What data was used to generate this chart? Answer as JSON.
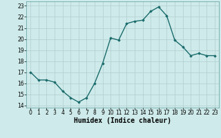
{
  "x": [
    0,
    1,
    2,
    3,
    4,
    5,
    6,
    7,
    8,
    9,
    10,
    11,
    12,
    13,
    14,
    15,
    16,
    17,
    18,
    19,
    20,
    21,
    22,
    23
  ],
  "y": [
    17.0,
    16.3,
    16.3,
    16.1,
    15.3,
    14.7,
    14.3,
    14.7,
    16.0,
    17.8,
    20.1,
    19.9,
    21.4,
    21.6,
    21.7,
    22.5,
    22.9,
    22.1,
    19.9,
    19.3,
    18.5,
    18.7,
    18.5,
    18.5
  ],
  "line_color": "#1a6b6b",
  "marker": "D",
  "marker_size": 1.8,
  "bg_color": "#ceeaea",
  "grid_color": "#b0cdcd",
  "grid_minor_color": "#c8e0e0",
  "xlabel": "Humidex (Indice chaleur)",
  "ylim": [
    13.8,
    23.4
  ],
  "xlim": [
    -0.5,
    23.5
  ],
  "yticks": [
    14,
    15,
    16,
    17,
    18,
    19,
    20,
    21,
    22,
    23
  ],
  "xticks": [
    0,
    1,
    2,
    3,
    4,
    5,
    6,
    7,
    8,
    9,
    10,
    11,
    12,
    13,
    14,
    15,
    16,
    17,
    18,
    19,
    20,
    21,
    22,
    23
  ],
  "tick_fontsize": 5.5,
  "xlabel_fontsize": 7.0,
  "line_width": 1.0
}
